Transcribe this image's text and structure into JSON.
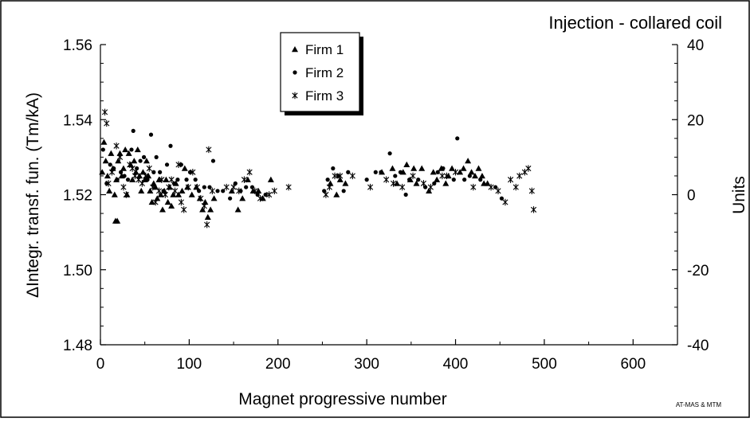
{
  "chart_data": {
    "type": "scatter",
    "title": "Injection - collared coil",
    "xlabel": "Magnet progressive number",
    "ylabel": "ΔIntegr. transf. fun. (Tm/kA)",
    "y2label": "Units",
    "xlim": [
      0,
      650
    ],
    "ylim": [
      1.48,
      1.56
    ],
    "y2lim": [
      -40,
      40
    ],
    "x_ticks": [
      0,
      100,
      200,
      300,
      400,
      500,
      600
    ],
    "x_tick_labels": [
      "0",
      "100",
      "200",
      "300",
      "400",
      "500",
      "600"
    ],
    "y_ticks": [
      1.48,
      1.5,
      1.52,
      1.54,
      1.56
    ],
    "y_tick_labels": [
      "1.48",
      "1.50",
      "1.52",
      "1.54",
      "1.56"
    ],
    "y2_ticks": [
      -40,
      -20,
      0,
      20,
      40
    ],
    "y2_tick_labels": [
      "-40",
      "-20",
      "0",
      "20",
      "40"
    ],
    "grid": false,
    "legend_position": "top-center",
    "credit": "AT-MAS & MTM",
    "series": [
      {
        "name": "Firm 1",
        "marker": "triangle",
        "color": "#000000",
        "points": [
          [
            2,
            1.526
          ],
          [
            4,
            1.534
          ],
          [
            6,
            1.529
          ],
          [
            8,
            1.525
          ],
          [
            10,
            1.521
          ],
          [
            12,
            1.531
          ],
          [
            14,
            1.527
          ],
          [
            16,
            1.52
          ],
          [
            17,
            1.513
          ],
          [
            18,
            1.524
          ],
          [
            19,
            1.513
          ],
          [
            20,
            1.529
          ],
          [
            22,
            1.531
          ],
          [
            24,
            1.525
          ],
          [
            26,
            1.527
          ],
          [
            28,
            1.532
          ],
          [
            30,
            1.52
          ],
          [
            32,
            1.531
          ],
          [
            34,
            1.528
          ],
          [
            36,
            1.524
          ],
          [
            38,
            1.529
          ],
          [
            40,
            1.526
          ],
          [
            42,
            1.532
          ],
          [
            44,
            1.525
          ],
          [
            46,
            1.521
          ],
          [
            48,
            1.526
          ],
          [
            50,
            1.524
          ],
          [
            52,
            1.529
          ],
          [
            54,
            1.525
          ],
          [
            56,
            1.521
          ],
          [
            58,
            1.518
          ],
          [
            60,
            1.523
          ],
          [
            62,
            1.522
          ],
          [
            64,
            1.519
          ],
          [
            66,
            1.524
          ],
          [
            68,
            1.52
          ],
          [
            70,
            1.516
          ],
          [
            72,
            1.521
          ],
          [
            74,
            1.524
          ],
          [
            76,
            1.518
          ],
          [
            78,
            1.522
          ],
          [
            80,
            1.517
          ],
          [
            82,
            1.52
          ],
          [
            85,
            1.523
          ],
          [
            88,
            1.52
          ],
          [
            92,
            1.521
          ],
          [
            95,
            1.527
          ],
          [
            98,
            1.522
          ],
          [
            103,
            1.52
          ],
          [
            108,
            1.522
          ],
          [
            112,
            1.519
          ],
          [
            115,
            1.516
          ],
          [
            118,
            1.518
          ],
          [
            121,
            1.514
          ],
          [
            124,
            1.516
          ],
          [
            128,
            1.519
          ],
          [
            148,
            1.521
          ],
          [
            155,
            1.516
          ],
          [
            160,
            1.519
          ],
          [
            166,
            1.524
          ],
          [
            172,
            1.521
          ],
          [
            178,
            1.521
          ],
          [
            183,
            1.519
          ],
          [
            192,
            1.524
          ],
          [
            259,
            1.523
          ],
          [
            266,
            1.52
          ],
          [
            270,
            1.524
          ],
          [
            276,
            1.523
          ],
          [
            317,
            1.526
          ],
          [
            329,
            1.527
          ],
          [
            334,
            1.523
          ],
          [
            341,
            1.526
          ],
          [
            345,
            1.528
          ],
          [
            349,
            1.524
          ],
          [
            353,
            1.527
          ],
          [
            356,
            1.523
          ],
          [
            362,
            1.527
          ],
          [
            370,
            1.521
          ],
          [
            375,
            1.526
          ],
          [
            379,
            1.524
          ],
          [
            384,
            1.527
          ],
          [
            389,
            1.523
          ],
          [
            392,
            1.525
          ],
          [
            396,
            1.527
          ],
          [
            405,
            1.526
          ],
          [
            409,
            1.527
          ],
          [
            414,
            1.529
          ],
          [
            418,
            1.526
          ],
          [
            422,
            1.525
          ],
          [
            426,
            1.527
          ],
          [
            430,
            1.525
          ],
          [
            432,
            1.523
          ],
          [
            436,
            1.523
          ]
        ]
      },
      {
        "name": "Firm 2",
        "marker": "circle",
        "color": "#000000",
        "points": [
          [
            3,
            1.532
          ],
          [
            7,
            1.523
          ],
          [
            11,
            1.528
          ],
          [
            15,
            1.527
          ],
          [
            19,
            1.524
          ],
          [
            23,
            1.526
          ],
          [
            27,
            1.525
          ],
          [
            31,
            1.524
          ],
          [
            35,
            1.532
          ],
          [
            37,
            1.537
          ],
          [
            41,
            1.527
          ],
          [
            45,
            1.529
          ],
          [
            49,
            1.53
          ],
          [
            53,
            1.524
          ],
          [
            57,
            1.536
          ],
          [
            60,
            1.526
          ],
          [
            63,
            1.53
          ],
          [
            67,
            1.526
          ],
          [
            71,
            1.521
          ],
          [
            75,
            1.528
          ],
          [
            79,
            1.533
          ],
          [
            83,
            1.523
          ],
          [
            87,
            1.524
          ],
          [
            91,
            1.528
          ],
          [
            97,
            1.524
          ],
          [
            101,
            1.526
          ],
          [
            107,
            1.524
          ],
          [
            111,
            1.521
          ],
          [
            117,
            1.522
          ],
          [
            123,
            1.522
          ],
          [
            127,
            1.529
          ],
          [
            132,
            1.521
          ],
          [
            138,
            1.521
          ],
          [
            146,
            1.519
          ],
          [
            152,
            1.523
          ],
          [
            158,
            1.521
          ],
          [
            164,
            1.522
          ],
          [
            171,
            1.522
          ],
          [
            177,
            1.52
          ],
          [
            186,
            1.52
          ],
          [
            252,
            1.521
          ],
          [
            256,
            1.524
          ],
          [
            262,
            1.527
          ],
          [
            268,
            1.525
          ],
          [
            274,
            1.521
          ],
          [
            279,
            1.526
          ],
          [
            300,
            1.524
          ],
          [
            310,
            1.526
          ],
          [
            316,
            1.526
          ],
          [
            326,
            1.531
          ],
          [
            332,
            1.525
          ],
          [
            338,
            1.526
          ],
          [
            344,
            1.52
          ],
          [
            348,
            1.524
          ],
          [
            358,
            1.524
          ],
          [
            366,
            1.522
          ],
          [
            376,
            1.523
          ],
          [
            380,
            1.526
          ],
          [
            386,
            1.527
          ],
          [
            398,
            1.524
          ],
          [
            402,
            1.535
          ],
          [
            410,
            1.524
          ],
          [
            416,
            1.525
          ],
          [
            428,
            1.524
          ],
          [
            445,
            1.522
          ],
          [
            452,
            1.519
          ]
        ]
      },
      {
        "name": "Firm 3",
        "marker": "asterisk",
        "color": "#000000",
        "points": [
          [
            5,
            1.542
          ],
          [
            7,
            1.539
          ],
          [
            9,
            1.523
          ],
          [
            13,
            1.526
          ],
          [
            18,
            1.533
          ],
          [
            22,
            1.53
          ],
          [
            26,
            1.522
          ],
          [
            29,
            1.52
          ],
          [
            33,
            1.528
          ],
          [
            36,
            1.527
          ],
          [
            39,
            1.525
          ],
          [
            43,
            1.524
          ],
          [
            47,
            1.523
          ],
          [
            51,
            1.525
          ],
          [
            55,
            1.527
          ],
          [
            59,
            1.522
          ],
          [
            62,
            1.518
          ],
          [
            66,
            1.521
          ],
          [
            69,
            1.524
          ],
          [
            73,
            1.52
          ],
          [
            77,
            1.522
          ],
          [
            80,
            1.524
          ],
          [
            84,
            1.521
          ],
          [
            88,
            1.528
          ],
          [
            91,
            1.518
          ],
          [
            94,
            1.516
          ],
          [
            99,
            1.522
          ],
          [
            104,
            1.526
          ],
          [
            109,
            1.522
          ],
          [
            113,
            1.519
          ],
          [
            117,
            1.517
          ],
          [
            120,
            1.512
          ],
          [
            122,
            1.532
          ],
          [
            126,
            1.521
          ],
          [
            142,
            1.522
          ],
          [
            150,
            1.522
          ],
          [
            156,
            1.521
          ],
          [
            162,
            1.524
          ],
          [
            168,
            1.526
          ],
          [
            174,
            1.521
          ],
          [
            180,
            1.519
          ],
          [
            190,
            1.52
          ],
          [
            196,
            1.521
          ],
          [
            212,
            1.522
          ],
          [
            254,
            1.52
          ],
          [
            258,
            1.522
          ],
          [
            264,
            1.525
          ],
          [
            270,
            1.525
          ],
          [
            284,
            1.525
          ],
          [
            304,
            1.522
          ],
          [
            322,
            1.524
          ],
          [
            330,
            1.523
          ],
          [
            340,
            1.522
          ],
          [
            352,
            1.525
          ],
          [
            364,
            1.523
          ],
          [
            372,
            1.522
          ],
          [
            385,
            1.525
          ],
          [
            390,
            1.525
          ],
          [
            400,
            1.526
          ],
          [
            420,
            1.522
          ],
          [
            440,
            1.522
          ],
          [
            448,
            1.521
          ],
          [
            456,
            1.518
          ],
          [
            462,
            1.524
          ],
          [
            468,
            1.522
          ],
          [
            472,
            1.525
          ],
          [
            478,
            1.526
          ],
          [
            482,
            1.527
          ],
          [
            486,
            1.521
          ],
          [
            488,
            1.516
          ]
        ]
      }
    ]
  }
}
